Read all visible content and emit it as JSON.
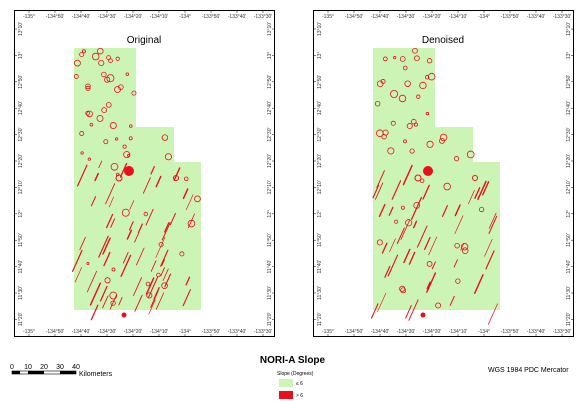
{
  "map_title": "NORI-A Slope",
  "panels": [
    {
      "title": "Original"
    },
    {
      "title": "Denoised"
    }
  ],
  "longitude_ticks": [
    "-135°",
    "-134°50'",
    "-134°40'",
    "-134°30'",
    "-134°20'",
    "-134°10'",
    "-134°",
    "-133°50'",
    "-133°40'",
    "-133°30'"
  ],
  "latitude_ticks": [
    "13°10'",
    "13°",
    "12°50'",
    "12°40'",
    "12°30'",
    "12°20'",
    "12°10'",
    "12°",
    "11°50'",
    "11°40'",
    "11°30'",
    "11°20'"
  ],
  "scale_bar": {
    "ticks": [
      "0",
      "10",
      "20",
      "30",
      "40"
    ],
    "unit": "Kilometers"
  },
  "legend": {
    "title": "Slope (Degrees)",
    "items": [
      {
        "label": "≤ 6",
        "color": "#ccf5b5"
      },
      {
        "label": "> 6",
        "color": "#e8101a"
      }
    ]
  },
  "projection": "WGS 1984 PDC Mercator",
  "colors": {
    "gentle_slope": "#ccf5b5",
    "steep_slope": "#e8101a",
    "frame": "#000000"
  }
}
